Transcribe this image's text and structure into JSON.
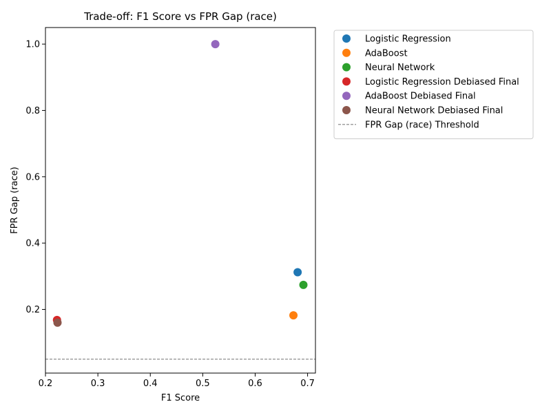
{
  "chart_data": {
    "type": "scatter",
    "title": "Trade-off: F1 Score vs FPR Gap (race)",
    "xlabel": "F1 Score",
    "ylabel": "FPR Gap (race)",
    "xlim": [
      0.2,
      0.715
    ],
    "ylim": [
      0.008,
      1.05
    ],
    "xticks": [
      0.2,
      0.3,
      0.4,
      0.5,
      0.6,
      0.7
    ],
    "xtick_labels": [
      "0.2",
      "0.3",
      "0.4",
      "0.5",
      "0.6",
      "0.7"
    ],
    "yticks": [
      0.2,
      0.4,
      0.6,
      0.8,
      1.0
    ],
    "ytick_labels": [
      "0.2",
      "0.4",
      "0.6",
      "0.8",
      "1.0"
    ],
    "grid": false,
    "legend_position": "outside-top-right",
    "series": [
      {
        "name": "Logistic Regression",
        "color": "#1f77b4",
        "x": 0.681,
        "y": 0.312
      },
      {
        "name": "AdaBoost",
        "color": "#ff7f0e",
        "x": 0.673,
        "y": 0.182
      },
      {
        "name": "Neural Network",
        "color": "#2ca02c",
        "x": 0.692,
        "y": 0.274
      },
      {
        "name": "Logistic Regression Debiased Final",
        "color": "#d62728",
        "x": 0.222,
        "y": 0.168
      },
      {
        "name": "AdaBoost Debiased Final",
        "color": "#9467bd",
        "x": 0.524,
        "y": 1.0
      },
      {
        "name": "Neural Network Debiased Final",
        "color": "#8c564b",
        "x": 0.223,
        "y": 0.16
      }
    ],
    "threshold": {
      "name": "FPR Gap (race) Threshold",
      "value": 0.05,
      "color": "#808080"
    }
  }
}
